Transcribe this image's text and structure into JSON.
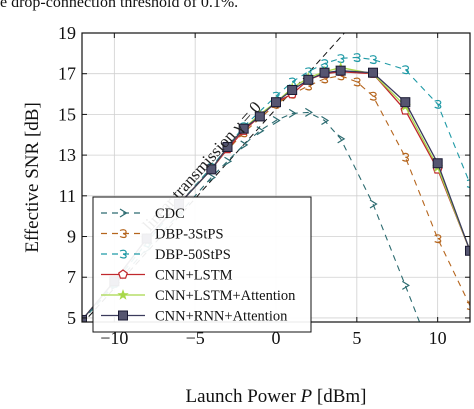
{
  "caption": "e drop-connection threshold of 0.1%.",
  "chart_data": {
    "type": "line",
    "xlabel": "Launch Power P [dBm]",
    "ylabel": "Effective SNR [dB]",
    "xlim": [
      -12,
      12
    ],
    "ylim": [
      4.8,
      19
    ],
    "xticks": [
      -10,
      -5,
      0,
      5,
      10
    ],
    "xtick_labels": [
      "−10",
      "−5",
      "0",
      "5",
      "10"
    ],
    "yticks": [
      5,
      7,
      9,
      11,
      13,
      15,
      17,
      19
    ],
    "grid": true,
    "legend_position": "bottom-left",
    "annotation": {
      "text": "linear transmission γ = 0",
      "line": {
        "x": [
          -12,
          6.5
        ],
        "y": [
          4.7,
          21
        ]
      }
    },
    "series": [
      {
        "name": "CDC",
        "color": "#2c6b70",
        "dash": "6,5",
        "marker": "tri-right",
        "x": [
          -12,
          -10,
          -8,
          -6,
          -4,
          -3,
          -2,
          -1,
          0,
          1,
          2,
          3,
          4,
          6,
          8,
          10
        ],
        "y": [
          4.85,
          6.6,
          8.4,
          10.1,
          11.9,
          12.7,
          13.5,
          14.2,
          14.7,
          15.05,
          15.1,
          14.7,
          13.8,
          10.6,
          6.6,
          2.5
        ]
      },
      {
        "name": "DBP-3StPS",
        "color": "#b5651d",
        "dash": "6,5",
        "marker": "spiral",
        "x": [
          -12,
          -10,
          -8,
          -6,
          -4,
          -2,
          0,
          1,
          2,
          3,
          4,
          5,
          6,
          8,
          10,
          12
        ],
        "y": [
          4.85,
          6.7,
          8.7,
          10.6,
          12.4,
          14.1,
          15.5,
          16.0,
          16.4,
          16.75,
          16.9,
          16.6,
          15.9,
          12.9,
          8.9,
          5.6
        ]
      },
      {
        "name": "DBP-50StPS",
        "color": "#1f9aa6",
        "dash": "6,5",
        "marker": "spiral",
        "x": [
          -12,
          -10,
          -8,
          -6,
          -4,
          -2,
          0,
          1,
          2,
          3,
          4,
          5,
          6,
          8,
          10,
          12
        ],
        "y": [
          4.85,
          6.7,
          8.7,
          10.6,
          12.4,
          14.4,
          15.9,
          16.6,
          17.1,
          17.5,
          17.75,
          17.8,
          17.7,
          17.2,
          15.5,
          11.6
        ]
      },
      {
        "name": "CNN+LSTM",
        "color": "#c0282d",
        "dash": "",
        "marker": "pentagon",
        "x": [
          -12,
          -10,
          -8,
          -6,
          -4,
          -3,
          -2,
          -1,
          0,
          1,
          2,
          3,
          4,
          6,
          8,
          10,
          12
        ],
        "y": [
          4.9,
          6.8,
          8.9,
          10.6,
          12.3,
          13.3,
          14.2,
          14.9,
          15.6,
          16.0,
          16.7,
          17.0,
          17.1,
          17.0,
          15.2,
          12.3,
          8.3
        ]
      },
      {
        "name": "CNN+LSTM+Attention",
        "color": "#a8d84a",
        "dash": "",
        "marker": "star",
        "x": [
          -12,
          -10,
          -8,
          -6,
          -4,
          -3,
          -2,
          -1,
          0,
          1,
          2,
          3,
          4,
          6,
          8,
          10,
          12
        ],
        "y": [
          4.9,
          6.8,
          8.9,
          10.6,
          12.3,
          13.4,
          14.3,
          15.0,
          15.6,
          16.3,
          16.8,
          17.1,
          17.3,
          17.0,
          15.4,
          12.4,
          8.3
        ]
      },
      {
        "name": "CNN+RNN+Attention",
        "color": "#3a3a5c",
        "dash": "",
        "marker": "square",
        "x": [
          -12,
          -10,
          -8,
          -6,
          -4,
          -3,
          -2,
          -1,
          0,
          1,
          2,
          3,
          4,
          6,
          8,
          10,
          12
        ],
        "y": [
          4.9,
          6.8,
          8.9,
          10.6,
          12.3,
          13.4,
          14.3,
          14.9,
          15.6,
          16.2,
          16.7,
          17.05,
          17.15,
          17.05,
          15.6,
          12.6,
          8.3
        ]
      }
    ]
  }
}
